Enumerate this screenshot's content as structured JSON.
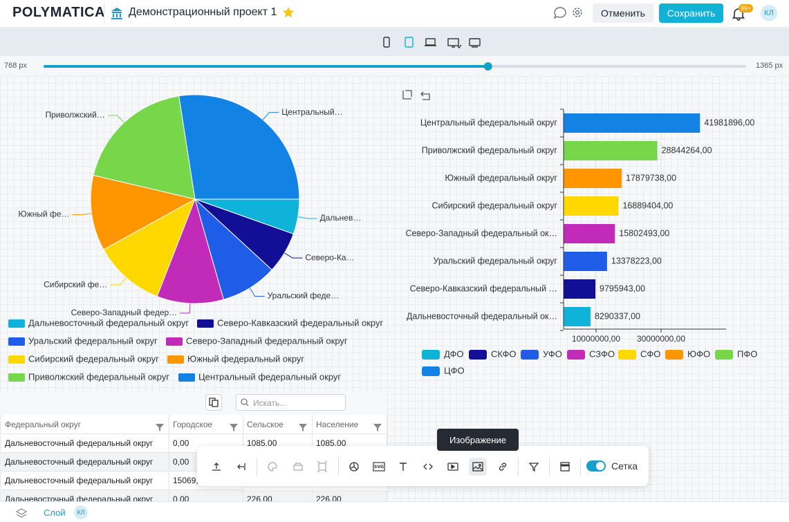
{
  "header": {
    "logo": "POLYMATICA",
    "project_title": "Демонстрационный проект 1",
    "cancel_button": "Отменить",
    "save_button": "Сохранить",
    "notification_badge": "99+",
    "avatar": "КЛ"
  },
  "width_slider": {
    "min": {
      "value": 768,
      "label": "768 px"
    },
    "max": {
      "value": 1365,
      "label": "1365 px"
    },
    "value": 1146
  },
  "chart_data": [
    {
      "type": "pie",
      "categories": [
        "Дальневосточный федеральный округ",
        "Северо-Кавказский федеральный округ",
        "Уральский федеральный округ",
        "Северо-Западный федеральный округ",
        "Сибирский федеральный округ",
        "Южный федеральный округ",
        "Приволжский федеральный округ",
        "Центральный федеральный округ"
      ],
      "slice_labels": [
        "Дальнев…",
        "Северо-Ка…",
        "Уральский феде…",
        "Северо-Западный федер…",
        "Сибирский фе…",
        "Южный фе…",
        "Приволжский…",
        "Центральный…"
      ],
      "values": [
        8290337,
        9795943,
        13378223,
        15802493,
        16889404,
        17879738,
        28844264,
        41981896
      ],
      "colors": [
        "#0fb3d9",
        "#120f96",
        "#1f5de9",
        "#c22ab8",
        "#ffd800",
        "#ff9600",
        "#78d64b",
        "#1282e4"
      ]
    },
    {
      "type": "bar",
      "orientation": "horizontal",
      "categories": [
        "Центральный федеральный округ",
        "Приволжский федеральный округ",
        "Южный федеральный округ",
        "Сибирский федеральный округ",
        "Северо-Западный федеральный ок…",
        "Уральский федеральный округ",
        "Северо-Кавказский федеральный …",
        "Дальневосточный федеральный ок…"
      ],
      "values": [
        41981896,
        28844264,
        17879738,
        16889404,
        15802493,
        13378223,
        9795943,
        8290337
      ],
      "value_labels": [
        "41981896,00",
        "28844264,00",
        "17879738,00",
        "16889404,00",
        "15802493,00",
        "13378223,00",
        "9795943,00",
        "8290337,00"
      ],
      "xlim": [
        0,
        50000000
      ],
      "xticks": [
        {
          "value": 10000000,
          "label": "10000000,00"
        },
        {
          "value": 30000000,
          "label": "30000000,00"
        }
      ],
      "grid": true,
      "legend": [
        {
          "name": "ДФО",
          "color": "#0fb3d9"
        },
        {
          "name": "СКФО",
          "color": "#120f96"
        },
        {
          "name": "УФО",
          "color": "#1f5de9"
        },
        {
          "name": "СЗФО",
          "color": "#c22ab8"
        },
        {
          "name": "СФО",
          "color": "#ffd800"
        },
        {
          "name": "ЮФО",
          "color": "#ff9600"
        },
        {
          "name": "ПФО",
          "color": "#78d64b"
        },
        {
          "name": "ЦФО",
          "color": "#1282e4"
        }
      ]
    }
  ],
  "table": {
    "search_placeholder": "Искать...",
    "columns": [
      "Федеральный округ",
      "Городское",
      "Сельское",
      "Население"
    ],
    "rows": [
      [
        "Дальневосточный федеральный округ",
        "0,00",
        "1085,00",
        "1085,00"
      ],
      [
        "Дальневосточный федеральный округ",
        "0,00"
      ],
      [
        "Дальневосточный федеральный округ",
        "15069,"
      ],
      [
        "Дальневосточный федеральный округ",
        "0,00",
        "226,00",
        "226,00"
      ]
    ]
  },
  "toolbar": {
    "tooltip": "Изображение",
    "grid_toggle_label": "Сетка",
    "grid_toggle_on": true
  },
  "footer": {
    "layer_label": "Слой",
    "avatar": "КЛ"
  }
}
